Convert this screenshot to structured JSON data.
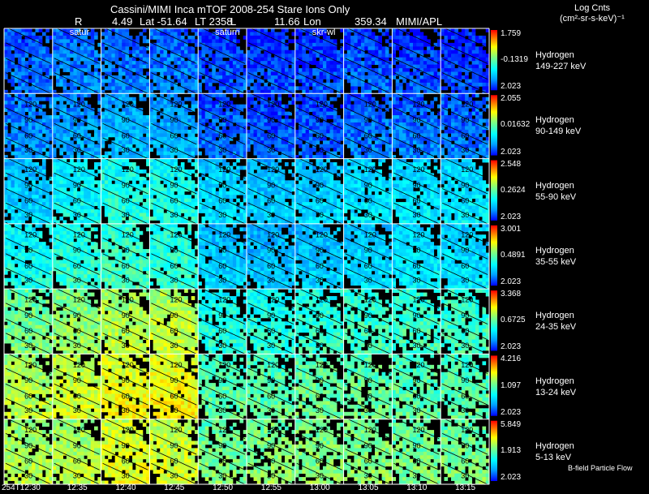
{
  "header": {
    "title": "Cassini/MIMI Inca mTOF  2008-254   Stare   Ions Only",
    "r_label": "R",
    "r_value": "4.49",
    "lat": "Lat -51.64",
    "lt": "LT 2358",
    "l_label": "L",
    "l_value": "11.66",
    "lon_label": "Lon",
    "lon_value": "359.34",
    "credit": "MIMI/APL",
    "units_title": "Log Cnts",
    "units_sub": "(cm²-sr-s-keV)⁻¹"
  },
  "footer": {
    "legend": "B-field Particle Flow"
  },
  "colors": {
    "background": "#000000",
    "grid": "#ffffff",
    "colormap": [
      "#0000ff",
      "#00a0ff",
      "#00ffff",
      "#80ff80",
      "#ffff00",
      "#ff8000",
      "#ff0000"
    ]
  },
  "chart_data": {
    "type": "heatmap",
    "title": "Cassini/MIMI Inca mTOF  2008-254   Stare   Ions Only",
    "species": "Hydrogen",
    "time_labels": [
      "254T12:30",
      "12:35",
      "12:40",
      "12:45",
      "12:50",
      "12:55",
      "13:00",
      "13:05",
      "13:10",
      "13:15"
    ],
    "panel_annotations": [
      {
        "row": 0,
        "col": 1,
        "text": "satur"
      },
      {
        "row": 0,
        "col": 4,
        "text": "saturn"
      },
      {
        "row": 0,
        "col": 6,
        "text": "skr-wl"
      }
    ],
    "contour_labels": [
      "120",
      "90",
      "60",
      "30"
    ],
    "rows": [
      {
        "energy": "149-227 keV",
        "cbar_max": "1.759",
        "cbar_mid": "-0.1319",
        "cbar_min": "2.023",
        "levels": [
          0.1,
          0.13,
          0.12,
          0.12,
          0.07,
          0.05,
          0.06,
          0.08,
          0.06,
          0.05
        ]
      },
      {
        "energy": "90-149 keV",
        "cbar_max": "2.055",
        "cbar_mid": "0.01632",
        "cbar_min": "2.023",
        "levels": [
          0.14,
          0.17,
          0.2,
          0.19,
          0.1,
          0.08,
          0.08,
          0.11,
          0.12,
          0.11
        ]
      },
      {
        "energy": "55-90 keV",
        "cbar_max": "2.548",
        "cbar_mid": "0.2624",
        "cbar_min": "2.023",
        "levels": [
          0.24,
          0.32,
          0.36,
          0.35,
          0.26,
          0.23,
          0.24,
          0.27,
          0.28,
          0.28
        ]
      },
      {
        "energy": "35-55 keV",
        "cbar_max": "3.001",
        "cbar_mid": "0.4891",
        "cbar_min": "2.023",
        "levels": [
          0.34,
          0.38,
          0.4,
          0.38,
          0.24,
          0.22,
          0.23,
          0.26,
          0.28,
          0.27
        ]
      },
      {
        "energy": "24-35 keV",
        "cbar_max": "3.368",
        "cbar_mid": "0.6725",
        "cbar_min": "2.023",
        "levels": [
          0.48,
          0.52,
          0.56,
          0.58,
          0.36,
          0.36,
          0.38,
          0.4,
          0.4,
          0.4
        ]
      },
      {
        "energy": "13-24 keV",
        "cbar_max": "4.216",
        "cbar_mid": "1.097",
        "cbar_min": "2.023",
        "levels": [
          0.56,
          0.6,
          0.64,
          0.66,
          0.44,
          0.44,
          0.46,
          0.46,
          0.44,
          0.44
        ]
      },
      {
        "energy": "5-13 keV",
        "cbar_max": "5.849",
        "cbar_mid": "1.913",
        "cbar_min": "2.023",
        "levels": [
          0.55,
          0.56,
          0.62,
          0.6,
          0.48,
          0.5,
          0.5,
          0.5,
          0.48,
          0.48
        ]
      }
    ]
  }
}
